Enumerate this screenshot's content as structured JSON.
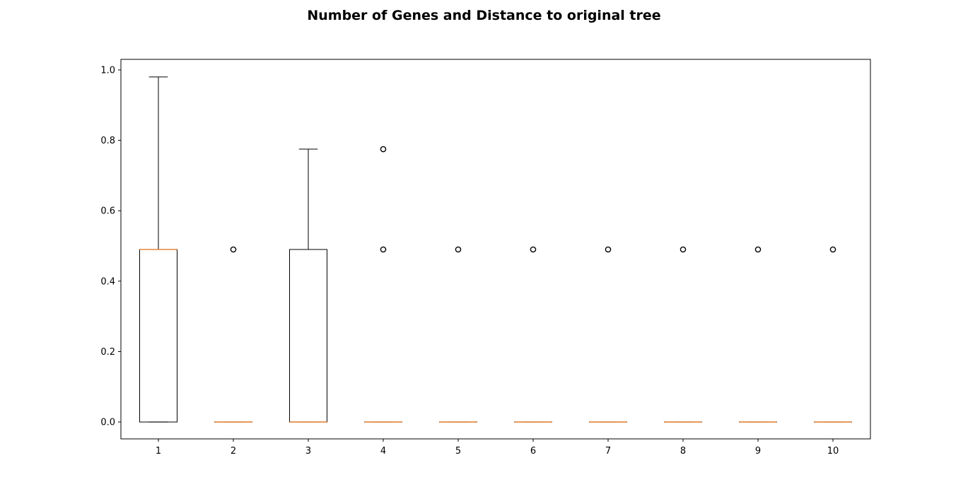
{
  "chart_data": {
    "type": "boxplot",
    "title": "Number of Genes and Distance to original tree",
    "xlabel": "",
    "ylabel": "",
    "categories": [
      "1",
      "2",
      "3",
      "4",
      "5",
      "6",
      "7",
      "8",
      "9",
      "10"
    ],
    "ylim": [
      -0.048,
      1.03
    ],
    "yticks": [
      0.0,
      0.2,
      0.4,
      0.6,
      0.8,
      1.0
    ],
    "ytick_labels": [
      "0.0",
      "0.2",
      "0.4",
      "0.6",
      "0.8",
      "1.0"
    ],
    "grid": false,
    "boxes": [
      {
        "label": "1",
        "whislo": 0.0,
        "q1": 0.0,
        "med": 0.49,
        "q3": 0.49,
        "whishi": 0.98,
        "fliers": []
      },
      {
        "label": "2",
        "whislo": 0.0,
        "q1": 0.0,
        "med": 0.0,
        "q3": 0.0,
        "whishi": 0.0,
        "fliers": [
          0.49
        ]
      },
      {
        "label": "3",
        "whislo": 0.0,
        "q1": 0.0,
        "med": 0.0,
        "q3": 0.49,
        "whishi": 0.775,
        "fliers": []
      },
      {
        "label": "4",
        "whislo": 0.0,
        "q1": 0.0,
        "med": 0.0,
        "q3": 0.0,
        "whishi": 0.0,
        "fliers": [
          0.49,
          0.775
        ]
      },
      {
        "label": "5",
        "whislo": 0.0,
        "q1": 0.0,
        "med": 0.0,
        "q3": 0.0,
        "whishi": 0.0,
        "fliers": [
          0.49
        ]
      },
      {
        "label": "6",
        "whislo": 0.0,
        "q1": 0.0,
        "med": 0.0,
        "q3": 0.0,
        "whishi": 0.0,
        "fliers": [
          0.49
        ]
      },
      {
        "label": "7",
        "whislo": 0.0,
        "q1": 0.0,
        "med": 0.0,
        "q3": 0.0,
        "whishi": 0.0,
        "fliers": [
          0.49
        ]
      },
      {
        "label": "8",
        "whislo": 0.0,
        "q1": 0.0,
        "med": 0.0,
        "q3": 0.0,
        "whishi": 0.0,
        "fliers": [
          0.49
        ]
      },
      {
        "label": "9",
        "whislo": 0.0,
        "q1": 0.0,
        "med": 0.0,
        "q3": 0.0,
        "whishi": 0.0,
        "fliers": [
          0.49
        ]
      },
      {
        "label": "10",
        "whislo": 0.0,
        "q1": 0.0,
        "med": 0.0,
        "q3": 0.0,
        "whishi": 0.0,
        "fliers": [
          0.49
        ]
      }
    ],
    "colors": {
      "box": "#000000",
      "median": "#e5863b",
      "whisker": "#000000",
      "flier": "#000000",
      "axes": "#000000"
    }
  }
}
